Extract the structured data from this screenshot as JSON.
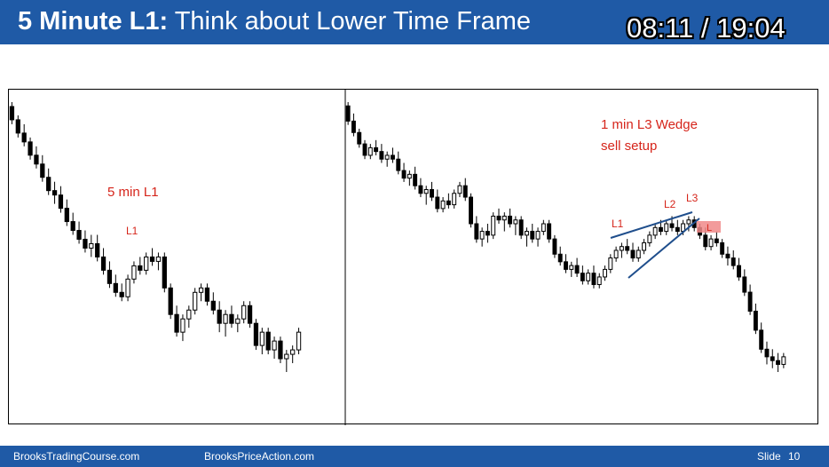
{
  "header": {
    "title_bold": "5 Minute L1:",
    "title_rest": " Think about Lower Time Frame",
    "timer": "08:11 / 19:04"
  },
  "left_chart": {
    "annotation": "5 min L1",
    "label": "L1"
  },
  "right_chart": {
    "annotation_line1": "1 min L3 Wedge",
    "annotation_line2": "sell setup",
    "labels": [
      "L1",
      "L2",
      "L3"
    ],
    "signal_label": "L"
  },
  "footer": {
    "site1": "BrooksTradingCourse.com",
    "site2": "BrooksPriceAction.com",
    "slide_label": "Slide",
    "slide_number": "10"
  },
  "colors": {
    "header_bg": "#1f5aa6",
    "annotation": "#d6251b",
    "wedge_line": "#1f4e8c",
    "signal_highlight": "#f08a8a"
  },
  "chart_data": [
    {
      "type": "candlestick",
      "timeframe": "5 min",
      "title": "",
      "annotations": [
        "5 min L1",
        "L1"
      ],
      "ohlc": [
        [
          100,
          101,
          96,
          97
        ],
        [
          97,
          98,
          93,
          94
        ],
        [
          94,
          96,
          91,
          92
        ],
        [
          92,
          93,
          88,
          89
        ],
        [
          89,
          91,
          86,
          87
        ],
        [
          87,
          89,
          83,
          84
        ],
        [
          84,
          86,
          80,
          81
        ],
        [
          81,
          83,
          78,
          80
        ],
        [
          80,
          82,
          76,
          77
        ],
        [
          77,
          79,
          73,
          74
        ],
        [
          74,
          76,
          71,
          72
        ],
        [
          72,
          74,
          69,
          70
        ],
        [
          70,
          72,
          67,
          68
        ],
        [
          68,
          71,
          66,
          69
        ],
        [
          69,
          71,
          65,
          66
        ],
        [
          66,
          68,
          62,
          63
        ],
        [
          63,
          65,
          59,
          60
        ],
        [
          60,
          62,
          57,
          58
        ],
        [
          58,
          60,
          56,
          57
        ],
        [
          57,
          62,
          56,
          61
        ],
        [
          61,
          65,
          60,
          64
        ],
        [
          64,
          66,
          62,
          63
        ],
        [
          63,
          67,
          62,
          66
        ],
        [
          66,
          68,
          64,
          65
        ],
        [
          65,
          67,
          63,
          66
        ],
        [
          66,
          67,
          58,
          59
        ],
        [
          59,
          60,
          52,
          53
        ],
        [
          53,
          55,
          48,
          49
        ],
        [
          49,
          53,
          47,
          52
        ],
        [
          52,
          55,
          50,
          54
        ],
        [
          54,
          59,
          53,
          58
        ],
        [
          58,
          60,
          56,
          59
        ],
        [
          59,
          60,
          55,
          56
        ],
        [
          56,
          58,
          53,
          54
        ],
        [
          54,
          56,
          49,
          51
        ],
        [
          51,
          54,
          48,
          53
        ],
        [
          53,
          55,
          50,
          51
        ],
        [
          51,
          53,
          49,
          52
        ],
        [
          52,
          56,
          51,
          55
        ],
        [
          55,
          56,
          50,
          51
        ],
        [
          51,
          52,
          45,
          46
        ],
        [
          46,
          50,
          44,
          49
        ],
        [
          49,
          50,
          44,
          45
        ],
        [
          45,
          48,
          43,
          47
        ],
        [
          47,
          48,
          42,
          43
        ],
        [
          43,
          45,
          40,
          44
        ],
        [
          44,
          46,
          42,
          45
        ],
        [
          45,
          50,
          44,
          49
        ]
      ]
    },
    {
      "type": "candlestick",
      "timeframe": "1 min",
      "title": "",
      "annotations": [
        "1 min L3 Wedge",
        "sell setup",
        "L1",
        "L2",
        "L3"
      ],
      "ohlc": [
        [
          100,
          101,
          95,
          96
        ],
        [
          96,
          98,
          92,
          93
        ],
        [
          93,
          94,
          89,
          90
        ],
        [
          90,
          91,
          86,
          87
        ],
        [
          87,
          90,
          86,
          89
        ],
        [
          89,
          91,
          87,
          88
        ],
        [
          88,
          90,
          85,
          86
        ],
        [
          86,
          88,
          84,
          87
        ],
        [
          87,
          89,
          85,
          86
        ],
        [
          86,
          88,
          82,
          83
        ],
        [
          83,
          85,
          80,
          81
        ],
        [
          81,
          83,
          79,
          82
        ],
        [
          82,
          84,
          78,
          79
        ],
        [
          79,
          81,
          76,
          77
        ],
        [
          77,
          79,
          74,
          78
        ],
        [
          78,
          80,
          75,
          76
        ],
        [
          76,
          78,
          72,
          73
        ],
        [
          73,
          76,
          72,
          75
        ],
        [
          75,
          77,
          73,
          74
        ],
        [
          74,
          78,
          73,
          77
        ],
        [
          77,
          80,
          76,
          79
        ],
        [
          79,
          81,
          75,
          76
        ],
        [
          76,
          77,
          68,
          69
        ],
        [
          69,
          71,
          64,
          65
        ],
        [
          65,
          68,
          63,
          67
        ],
        [
          67,
          69,
          64,
          66
        ],
        [
          66,
          72,
          65,
          71
        ],
        [
          71,
          73,
          69,
          70
        ],
        [
          70,
          72,
          67,
          71
        ],
        [
          71,
          73,
          68,
          69
        ],
        [
          69,
          71,
          66,
          70
        ],
        [
          70,
          71,
          65,
          66
        ],
        [
          66,
          68,
          63,
          67
        ],
        [
          67,
          69,
          64,
          65
        ],
        [
          65,
          68,
          63,
          67
        ],
        [
          67,
          70,
          66,
          69
        ],
        [
          69,
          70,
          64,
          65
        ],
        [
          65,
          66,
          60,
          61
        ],
        [
          61,
          63,
          58,
          59
        ],
        [
          59,
          61,
          56,
          57
        ],
        [
          57,
          59,
          55,
          58
        ],
        [
          58,
          60,
          55,
          56
        ],
        [
          56,
          58,
          53,
          54
        ],
        [
          54,
          57,
          53,
          56
        ],
        [
          56,
          58,
          52,
          53
        ],
        [
          53,
          56,
          52,
          55
        ],
        [
          55,
          58,
          54,
          57
        ],
        [
          57,
          61,
          56,
          60
        ],
        [
          60,
          63,
          59,
          62
        ],
        [
          62,
          64,
          60,
          63
        ],
        [
          63,
          65,
          61,
          62
        ],
        [
          62,
          64,
          59,
          60
        ],
        [
          60,
          63,
          59,
          62
        ],
        [
          62,
          65,
          61,
          64
        ],
        [
          64,
          67,
          63,
          66
        ],
        [
          66,
          69,
          65,
          68
        ],
        [
          68,
          70,
          66,
          67
        ],
        [
          67,
          70,
          66,
          69
        ],
        [
          69,
          71,
          67,
          68
        ],
        [
          68,
          70,
          66,
          67
        ],
        [
          67,
          70,
          66,
          69
        ],
        [
          69,
          71,
          67,
          70
        ],
        [
          70,
          71,
          67,
          68
        ],
        [
          68,
          69,
          65,
          66
        ],
        [
          66,
          68,
          62,
          63
        ],
        [
          63,
          66,
          62,
          65
        ],
        [
          65,
          67,
          63,
          64
        ],
        [
          64,
          65,
          60,
          61
        ],
        [
          61,
          63,
          58,
          60
        ],
        [
          60,
          62,
          57,
          58
        ],
        [
          58,
          60,
          54,
          55
        ],
        [
          55,
          57,
          50,
          51
        ],
        [
          51,
          53,
          45,
          46
        ],
        [
          46,
          48,
          40,
          41
        ],
        [
          41,
          43,
          35,
          36
        ],
        [
          36,
          38,
          32,
          34
        ],
        [
          34,
          36,
          31,
          33
        ],
        [
          33,
          35,
          30,
          32
        ],
        [
          32,
          35,
          31,
          34
        ]
      ]
    }
  ]
}
